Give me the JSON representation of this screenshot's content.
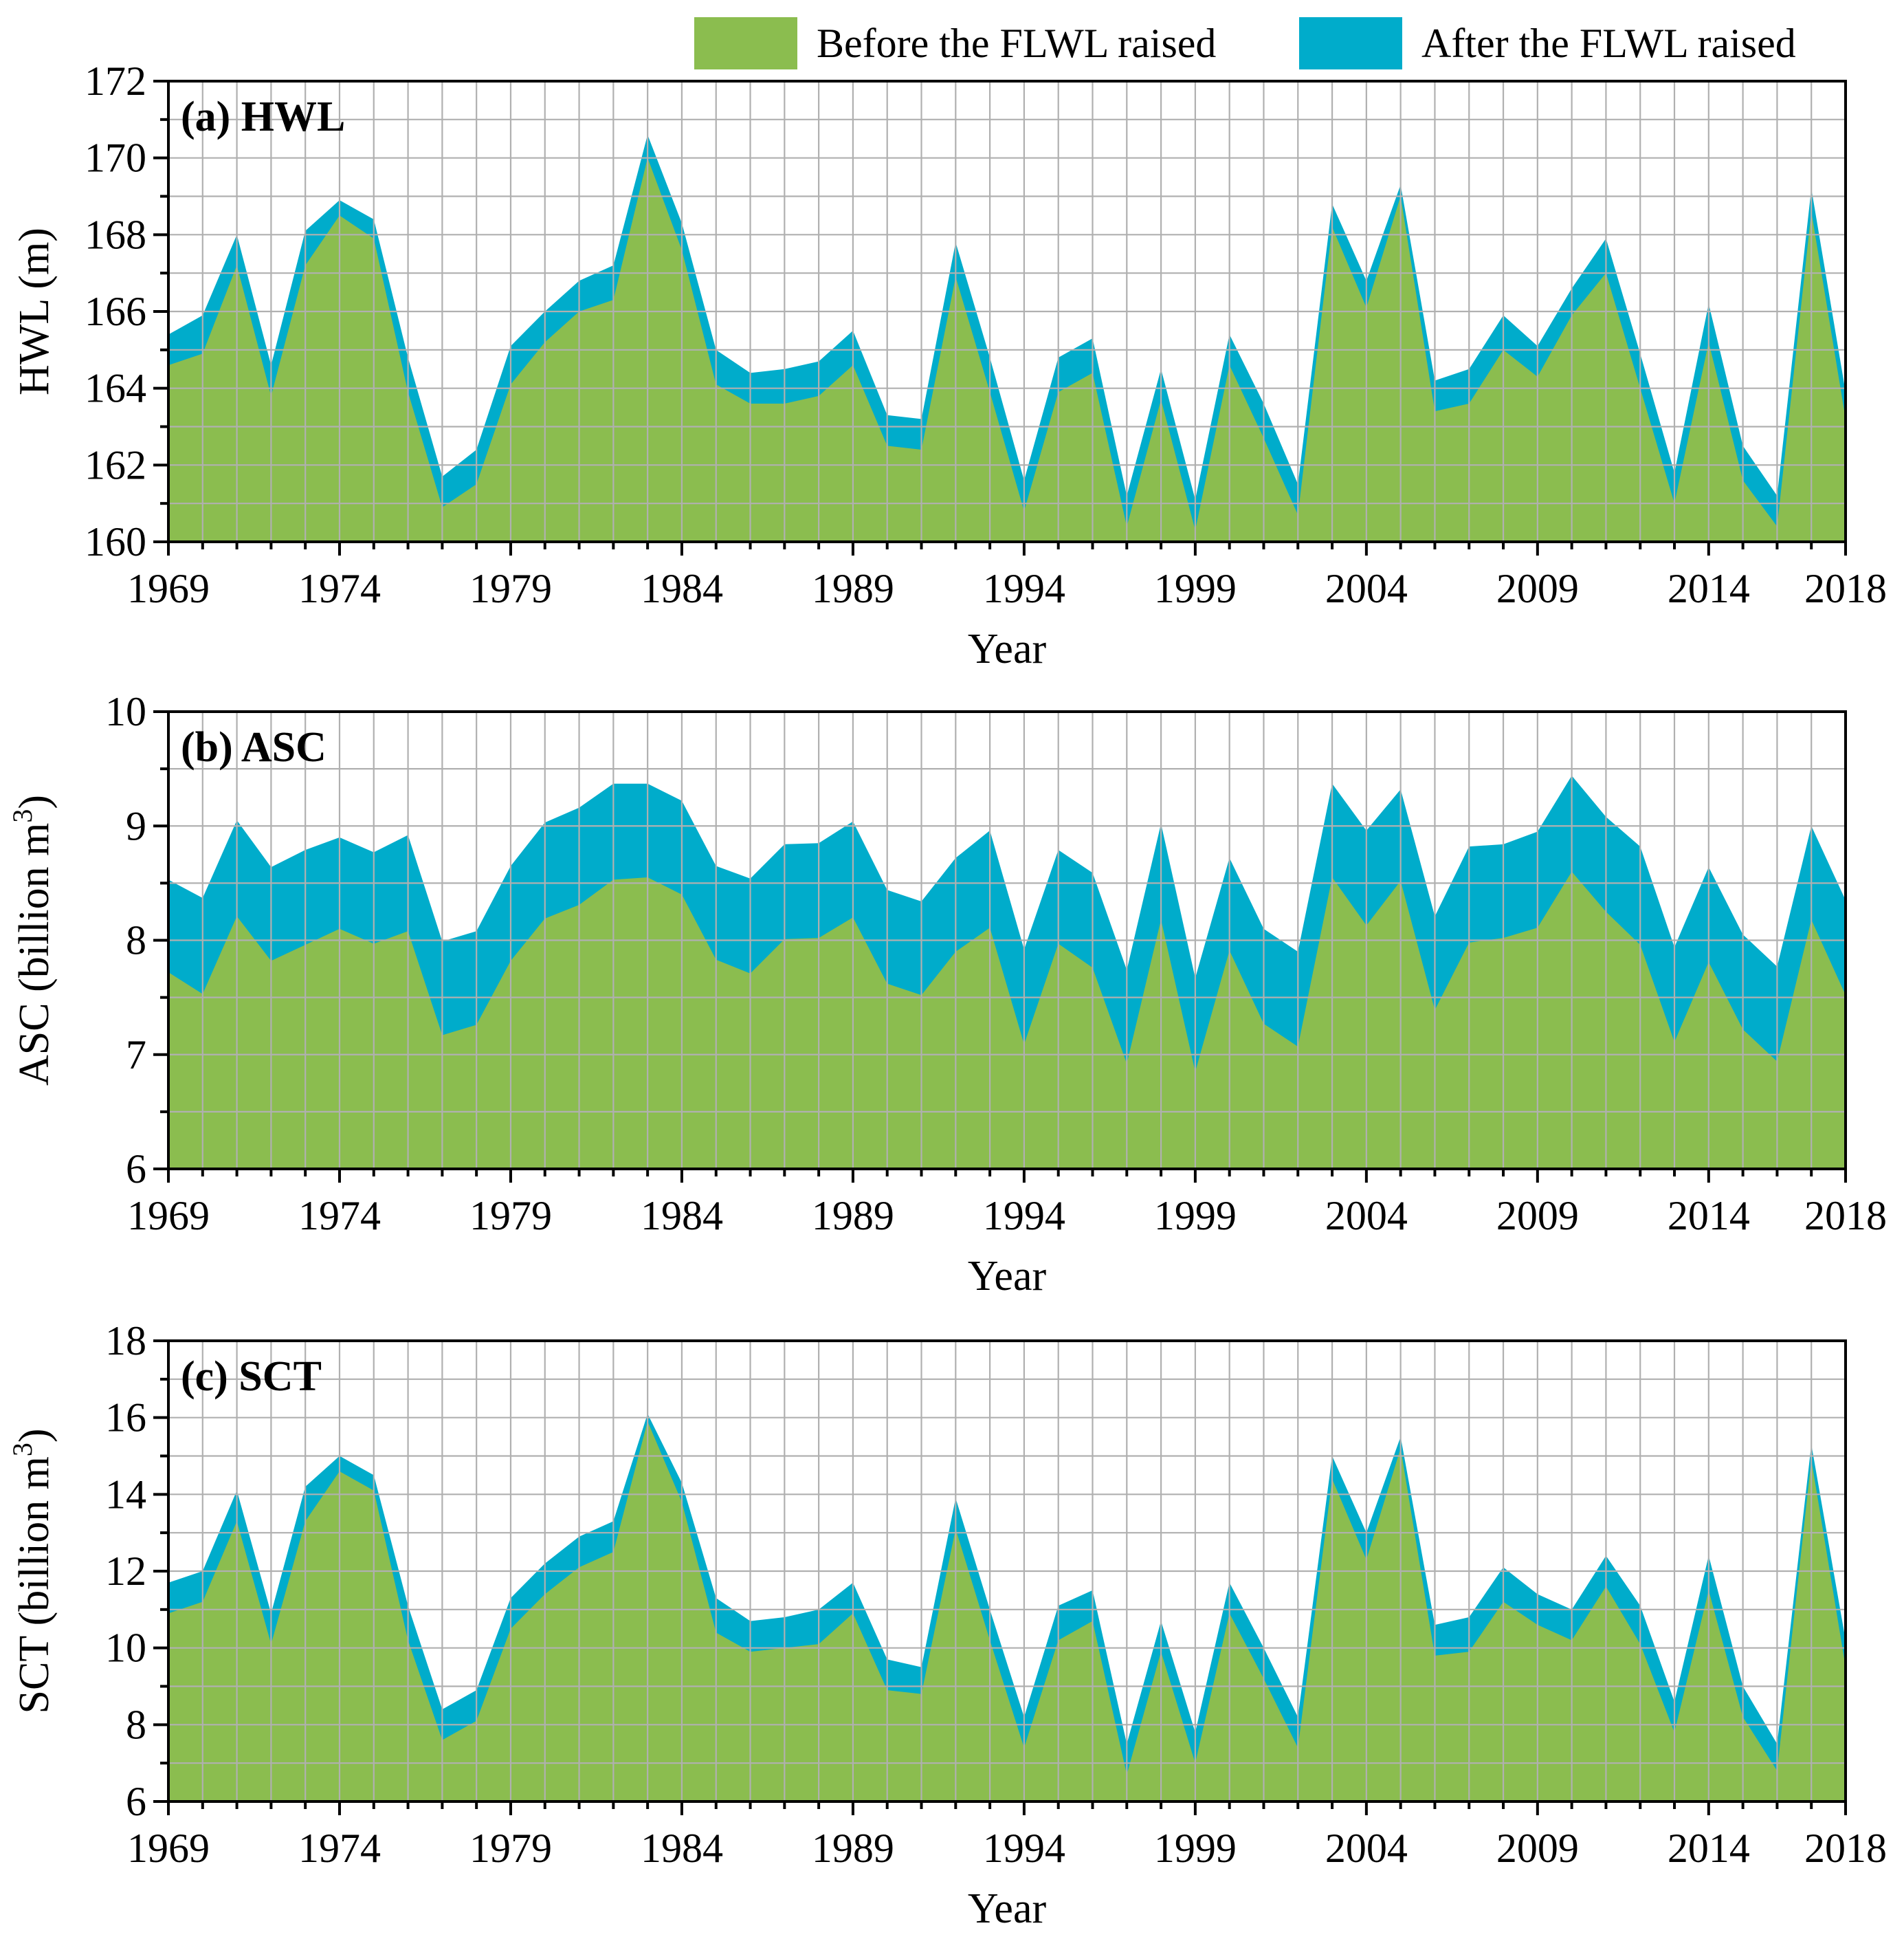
{
  "legend": {
    "before_label": "Before the FLWL raised",
    "after_label": "After the FLWL raised",
    "before_color": "#8bbd4f",
    "after_color": "#00accb"
  },
  "chart_data": [
    {
      "type": "area",
      "panel_label": "(a) HWL",
      "xlabel": "Year",
      "ylabel": "HWL (m)",
      "xlim": [
        1969,
        2018
      ],
      "ylim": [
        160,
        172
      ],
      "yticks": [
        160,
        162,
        164,
        166,
        168,
        170,
        172
      ],
      "xticks": [
        1969,
        1974,
        1979,
        1984,
        1989,
        1994,
        1999,
        2004,
        2009,
        2014,
        2018
      ],
      "grid": true,
      "x": [
        1969,
        1970,
        1971,
        1972,
        1973,
        1974,
        1975,
        1976,
        1977,
        1978,
        1979,
        1980,
        1981,
        1982,
        1983,
        1984,
        1985,
        1986,
        1987,
        1988,
        1989,
        1990,
        1991,
        1992,
        1993,
        1994,
        1995,
        1996,
        1997,
        1998,
        1999,
        2000,
        2001,
        2002,
        2003,
        2004,
        2005,
        2006,
        2007,
        2008,
        2009,
        2010,
        2011,
        2012,
        2013,
        2014,
        2015,
        2016,
        2017,
        2018
      ],
      "series": [
        {
          "name": "Before the FLWL raised",
          "values": [
            164.6,
            164.9,
            167.2,
            163.8,
            167.2,
            168.5,
            167.9,
            163.9,
            160.9,
            161.5,
            164.1,
            165.2,
            166.0,
            166.3,
            170.0,
            167.6,
            164.1,
            163.6,
            163.6,
            163.8,
            164.6,
            162.5,
            162.4,
            166.9,
            163.9,
            160.8,
            163.9,
            164.4,
            160.4,
            163.7,
            160.3,
            164.6,
            162.7,
            160.7,
            168.2,
            166.1,
            169.0,
            163.4,
            163.6,
            165.0,
            164.3,
            165.9,
            167.0,
            164.0,
            161.0,
            165.2,
            161.6,
            160.4,
            168.6,
            163.2
          ]
        },
        {
          "name": "After the FLWL raised",
          "values": [
            165.4,
            165.9,
            168.0,
            164.6,
            168.1,
            168.9,
            168.4,
            164.8,
            161.7,
            162.4,
            165.1,
            166.0,
            166.8,
            167.2,
            170.6,
            168.3,
            165.0,
            164.4,
            164.5,
            164.7,
            165.5,
            163.3,
            163.2,
            167.8,
            164.8,
            161.6,
            164.8,
            165.3,
            161.2,
            164.5,
            161.1,
            165.4,
            163.6,
            161.5,
            168.8,
            166.8,
            169.3,
            164.2,
            164.5,
            165.9,
            165.1,
            166.6,
            167.9,
            164.9,
            161.8,
            166.2,
            162.5,
            161.2,
            169.2,
            163.9
          ]
        }
      ]
    },
    {
      "type": "area",
      "panel_label": "(b) ASC",
      "xlabel": "Year",
      "ylabel": "ASC (billion m",
      "ylabel_sup": "3",
      "ylabel_end": ")",
      "xlim": [
        1969,
        2018
      ],
      "ylim": [
        6,
        10
      ],
      "yticks": [
        6,
        7,
        8,
        9,
        10
      ],
      "xticks": [
        1969,
        1974,
        1979,
        1984,
        1989,
        1994,
        1999,
        2004,
        2009,
        2014,
        2018
      ],
      "grid": true,
      "x": [
        1969,
        1970,
        1971,
        1972,
        1973,
        1974,
        1975,
        1976,
        1977,
        1978,
        1979,
        1980,
        1981,
        1982,
        1983,
        1984,
        1985,
        1986,
        1987,
        1988,
        1989,
        1990,
        1991,
        1992,
        1993,
        1994,
        1995,
        1996,
        1997,
        1998,
        1999,
        2000,
        2001,
        2002,
        2003,
        2004,
        2005,
        2006,
        2007,
        2008,
        2009,
        2010,
        2011,
        2012,
        2013,
        2014,
        2015,
        2016,
        2017,
        2018
      ],
      "series": [
        {
          "name": "Before the FLWL raised",
          "values": [
            7.72,
            7.53,
            8.21,
            7.82,
            7.96,
            8.1,
            7.97,
            8.08,
            7.17,
            7.26,
            7.82,
            8.19,
            8.31,
            8.53,
            8.55,
            8.4,
            7.83,
            7.71,
            8.01,
            8.02,
            8.2,
            7.62,
            7.52,
            7.9,
            8.11,
            7.09,
            7.97,
            7.76,
            6.92,
            8.18,
            6.85,
            7.91,
            7.27,
            7.07,
            8.55,
            8.13,
            8.52,
            7.39,
            7.98,
            8.02,
            8.11,
            8.6,
            8.25,
            7.96,
            7.11,
            7.81,
            7.22,
            6.94,
            8.18,
            7.52
          ]
        },
        {
          "name": "After the FLWL raised",
          "values": [
            8.53,
            8.37,
            9.05,
            8.64,
            8.79,
            8.9,
            8.77,
            8.92,
            7.99,
            8.08,
            8.65,
            9.03,
            9.16,
            9.37,
            9.37,
            9.22,
            8.65,
            8.54,
            8.84,
            8.85,
            9.04,
            8.44,
            8.34,
            8.72,
            8.96,
            7.92,
            8.79,
            8.59,
            7.74,
            9.02,
            7.67,
            8.72,
            8.1,
            7.9,
            9.37,
            8.96,
            9.32,
            8.21,
            8.82,
            8.84,
            8.95,
            9.44,
            9.08,
            8.82,
            7.94,
            8.64,
            8.05,
            7.77,
            9.0,
            8.35
          ]
        }
      ]
    },
    {
      "type": "area",
      "panel_label": "(c) SCT",
      "xlabel": "Year",
      "ylabel": "SCT (billion m",
      "ylabel_sup": "3",
      "ylabel_end": ")",
      "xlim": [
        1969,
        2018
      ],
      "ylim": [
        6,
        18
      ],
      "yticks": [
        6,
        8,
        10,
        12,
        14,
        16,
        18
      ],
      "xticks": [
        1969,
        1974,
        1979,
        1984,
        1989,
        1994,
        1999,
        2004,
        2009,
        2014,
        2018
      ],
      "grid": true,
      "x": [
        1969,
        1970,
        1971,
        1972,
        1973,
        1974,
        1975,
        1976,
        1977,
        1978,
        1979,
        1980,
        1981,
        1982,
        1983,
        1984,
        1985,
        1986,
        1987,
        1988,
        1989,
        1990,
        1991,
        1992,
        1993,
        1994,
        1995,
        1996,
        1997,
        1998,
        1999,
        2000,
        2001,
        2002,
        2003,
        2004,
        2005,
        2006,
        2007,
        2008,
        2009,
        2010,
        2011,
        2012,
        2013,
        2014,
        2015,
        2016,
        2017,
        2018
      ],
      "series": [
        {
          "name": "Before the FLWL raised",
          "values": [
            10.9,
            11.2,
            13.3,
            10.1,
            13.3,
            14.6,
            14.1,
            10.2,
            7.6,
            8.1,
            10.5,
            11.4,
            12.1,
            12.5,
            15.9,
            13.8,
            10.4,
            9.9,
            10.0,
            10.1,
            10.9,
            8.9,
            8.8,
            13.1,
            10.2,
            7.4,
            10.2,
            10.7,
            6.7,
            9.9,
            7.0,
            10.9,
            9.2,
            7.4,
            14.4,
            12.3,
            15.2,
            9.8,
            9.9,
            11.2,
            10.6,
            10.2,
            11.6,
            10.1,
            7.8,
            11.5,
            8.2,
            6.8,
            14.9,
            9.5
          ]
        },
        {
          "name": "After the FLWL raised",
          "values": [
            11.7,
            12.0,
            14.1,
            10.9,
            14.2,
            15.0,
            14.5,
            11.1,
            8.4,
            8.9,
            11.3,
            12.2,
            12.9,
            13.3,
            16.1,
            14.3,
            11.3,
            10.7,
            10.8,
            11.0,
            11.7,
            9.7,
            9.5,
            13.9,
            11.0,
            8.2,
            11.1,
            11.5,
            7.5,
            10.7,
            7.8,
            11.7,
            10.0,
            8.2,
            15.0,
            13.0,
            15.5,
            10.6,
            10.8,
            12.1,
            11.4,
            11.0,
            12.4,
            11.1,
            8.6,
            12.4,
            9.0,
            7.5,
            15.3,
            10.2
          ]
        }
      ]
    }
  ]
}
